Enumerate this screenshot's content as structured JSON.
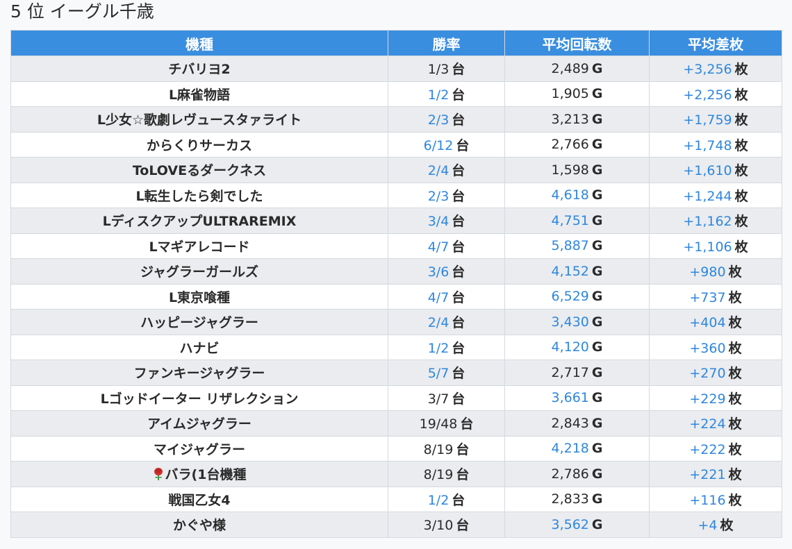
{
  "section": {
    "title": "5 位 イーグル千歳"
  },
  "table": {
    "headers": [
      "機種",
      "勝率",
      "平均回転数",
      "平均差枚"
    ],
    "units": {
      "win": "台",
      "spins": "G",
      "diff": "枚"
    },
    "colors": {
      "header_bg": "#3a8ee0",
      "highlight": "#2e86de"
    },
    "rows": [
      {
        "machine": "チバリヨ2",
        "win": "1/3",
        "win_hl": false,
        "spins": "2,489",
        "spins_hl": false,
        "diff": "+3,256",
        "diff_hl": true,
        "icon": ""
      },
      {
        "machine": "L麻雀物語",
        "win": "1/2",
        "win_hl": true,
        "spins": "1,905",
        "spins_hl": false,
        "diff": "+2,256",
        "diff_hl": true,
        "icon": ""
      },
      {
        "machine": "L少女☆歌劇レヴュースタァライト",
        "win": "2/3",
        "win_hl": true,
        "spins": "3,213",
        "spins_hl": false,
        "diff": "+1,759",
        "diff_hl": true,
        "icon": ""
      },
      {
        "machine": "からくりサーカス",
        "win": "6/12",
        "win_hl": true,
        "spins": "2,766",
        "spins_hl": false,
        "diff": "+1,748",
        "diff_hl": true,
        "icon": ""
      },
      {
        "machine": "ToLOVEるダークネス",
        "win": "2/4",
        "win_hl": true,
        "spins": "1,598",
        "spins_hl": false,
        "diff": "+1,610",
        "diff_hl": true,
        "icon": ""
      },
      {
        "machine": "L転生したら剣でした",
        "win": "2/3",
        "win_hl": true,
        "spins": "4,618",
        "spins_hl": true,
        "diff": "+1,244",
        "diff_hl": true,
        "icon": ""
      },
      {
        "machine": "LディスクアップULTRAREMIX",
        "win": "3/4",
        "win_hl": true,
        "spins": "4,751",
        "spins_hl": true,
        "diff": "+1,162",
        "diff_hl": true,
        "icon": ""
      },
      {
        "machine": "Lマギアレコード",
        "win": "4/7",
        "win_hl": true,
        "spins": "5,887",
        "spins_hl": true,
        "diff": "+1,106",
        "diff_hl": true,
        "icon": ""
      },
      {
        "machine": "ジャグラーガールズ",
        "win": "3/6",
        "win_hl": true,
        "spins": "4,152",
        "spins_hl": true,
        "diff": "+980",
        "diff_hl": true,
        "icon": ""
      },
      {
        "machine": "L東京喰種",
        "win": "4/7",
        "win_hl": true,
        "spins": "6,529",
        "spins_hl": true,
        "diff": "+737",
        "diff_hl": true,
        "icon": ""
      },
      {
        "machine": "ハッピージャグラー",
        "win": "2/4",
        "win_hl": true,
        "spins": "3,430",
        "spins_hl": true,
        "diff": "+404",
        "diff_hl": true,
        "icon": ""
      },
      {
        "machine": "ハナビ",
        "win": "1/2",
        "win_hl": true,
        "spins": "4,120",
        "spins_hl": true,
        "diff": "+360",
        "diff_hl": true,
        "icon": ""
      },
      {
        "machine": "ファンキージャグラー",
        "win": "5/7",
        "win_hl": true,
        "spins": "2,717",
        "spins_hl": false,
        "diff": "+270",
        "diff_hl": true,
        "icon": ""
      },
      {
        "machine": "Lゴッドイーター リザレクション",
        "win": "3/7",
        "win_hl": false,
        "spins": "3,661",
        "spins_hl": true,
        "diff": "+229",
        "diff_hl": true,
        "icon": ""
      },
      {
        "machine": "アイムジャグラー",
        "win": "19/48",
        "win_hl": false,
        "spins": "2,843",
        "spins_hl": false,
        "diff": "+224",
        "diff_hl": true,
        "icon": ""
      },
      {
        "machine": "マイジャグラー",
        "win": "8/19",
        "win_hl": false,
        "spins": "4,218",
        "spins_hl": true,
        "diff": "+222",
        "diff_hl": true,
        "icon": ""
      },
      {
        "machine": "バラ(1台機種",
        "win": "8/19",
        "win_hl": false,
        "spins": "2,786",
        "spins_hl": false,
        "diff": "+221",
        "diff_hl": true,
        "icon": "rose-icon"
      },
      {
        "machine": "戦国乙女4",
        "win": "1/2",
        "win_hl": true,
        "spins": "2,833",
        "spins_hl": false,
        "diff": "+116",
        "diff_hl": true,
        "icon": ""
      },
      {
        "machine": "かぐや様",
        "win": "3/10",
        "win_hl": false,
        "spins": "3,562",
        "spins_hl": true,
        "diff": "+4",
        "diff_hl": true,
        "icon": ""
      }
    ]
  }
}
